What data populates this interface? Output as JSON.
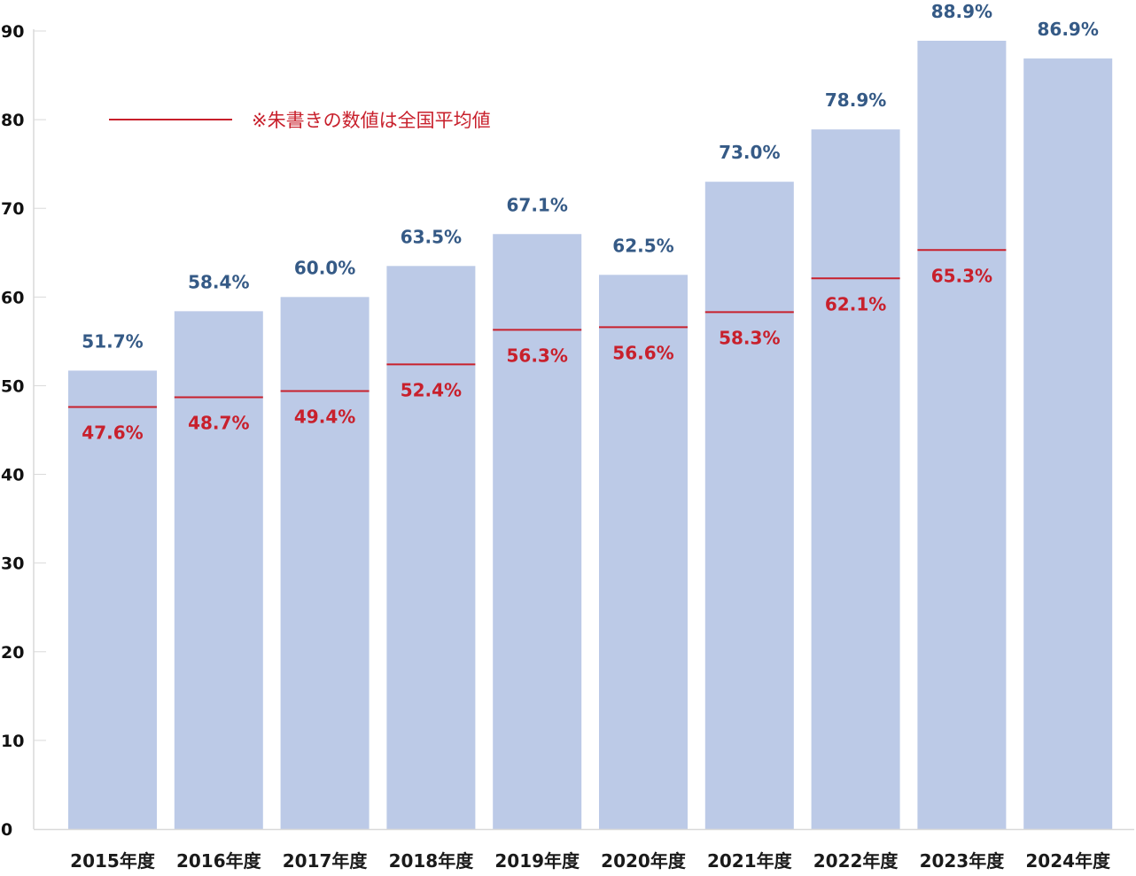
{
  "chart_data": {
    "type": "bar",
    "title": "",
    "xlabel": "",
    "ylabel": "",
    "ylim": [
      0,
      90
    ],
    "yticks": [
      0,
      10,
      20,
      30,
      40,
      50,
      60,
      70,
      80,
      90
    ],
    "grid": true,
    "categories": [
      "2015年度",
      "2016年度",
      "2017年度",
      "2018年度",
      "2019年度",
      "2020年度",
      "2021年度",
      "2022年度",
      "2023年度",
      "2024年度"
    ],
    "series": [
      {
        "name": "数値",
        "values": [
          51.7,
          58.4,
          60.0,
          63.5,
          67.1,
          62.5,
          73.0,
          78.9,
          88.9,
          86.9
        ],
        "labels": [
          "51.7%",
          "58.4%",
          "60.0%",
          "63.5%",
          "67.1%",
          "62.5%",
          "73.0%",
          "78.9%",
          "88.9%",
          "86.9%"
        ],
        "color": "#bccae7",
        "label_color": "#355a86"
      },
      {
        "name": "全国平均値",
        "values": [
          47.6,
          48.7,
          49.4,
          52.4,
          56.3,
          56.6,
          58.3,
          62.1,
          65.3,
          null
        ],
        "labels": [
          "47.6%",
          "48.7%",
          "49.4%",
          "52.4%",
          "56.3%",
          "56.6%",
          "58.3%",
          "62.1%",
          "65.3%",
          null
        ],
        "color": "#c8202c"
      }
    ],
    "legend": {
      "text": "※朱書きの数値は全国平均値",
      "placement": "top-left",
      "color": "#c8202c"
    },
    "grid_color": "#d9d9d9"
  }
}
